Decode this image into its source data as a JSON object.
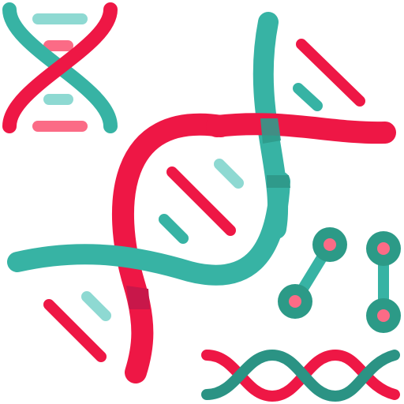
{
  "icon": {
    "name": "dna-genetics-icon",
    "palette": {
      "red": "#ee1745",
      "red_dark": "#c8174a",
      "red_light": "#fb6b86",
      "teal": "#37b3a4",
      "teal_dark": "#2f9a8b",
      "teal_darker": "#2b9384",
      "teal_light": "#8ed9d2",
      "node_dark": "#2c9a87",
      "node_fill": "#fb6b86"
    },
    "parts": [
      "small-dna-helix",
      "large-dna-helix",
      "molecule-nodes",
      "bottom-dna-strand"
    ]
  }
}
